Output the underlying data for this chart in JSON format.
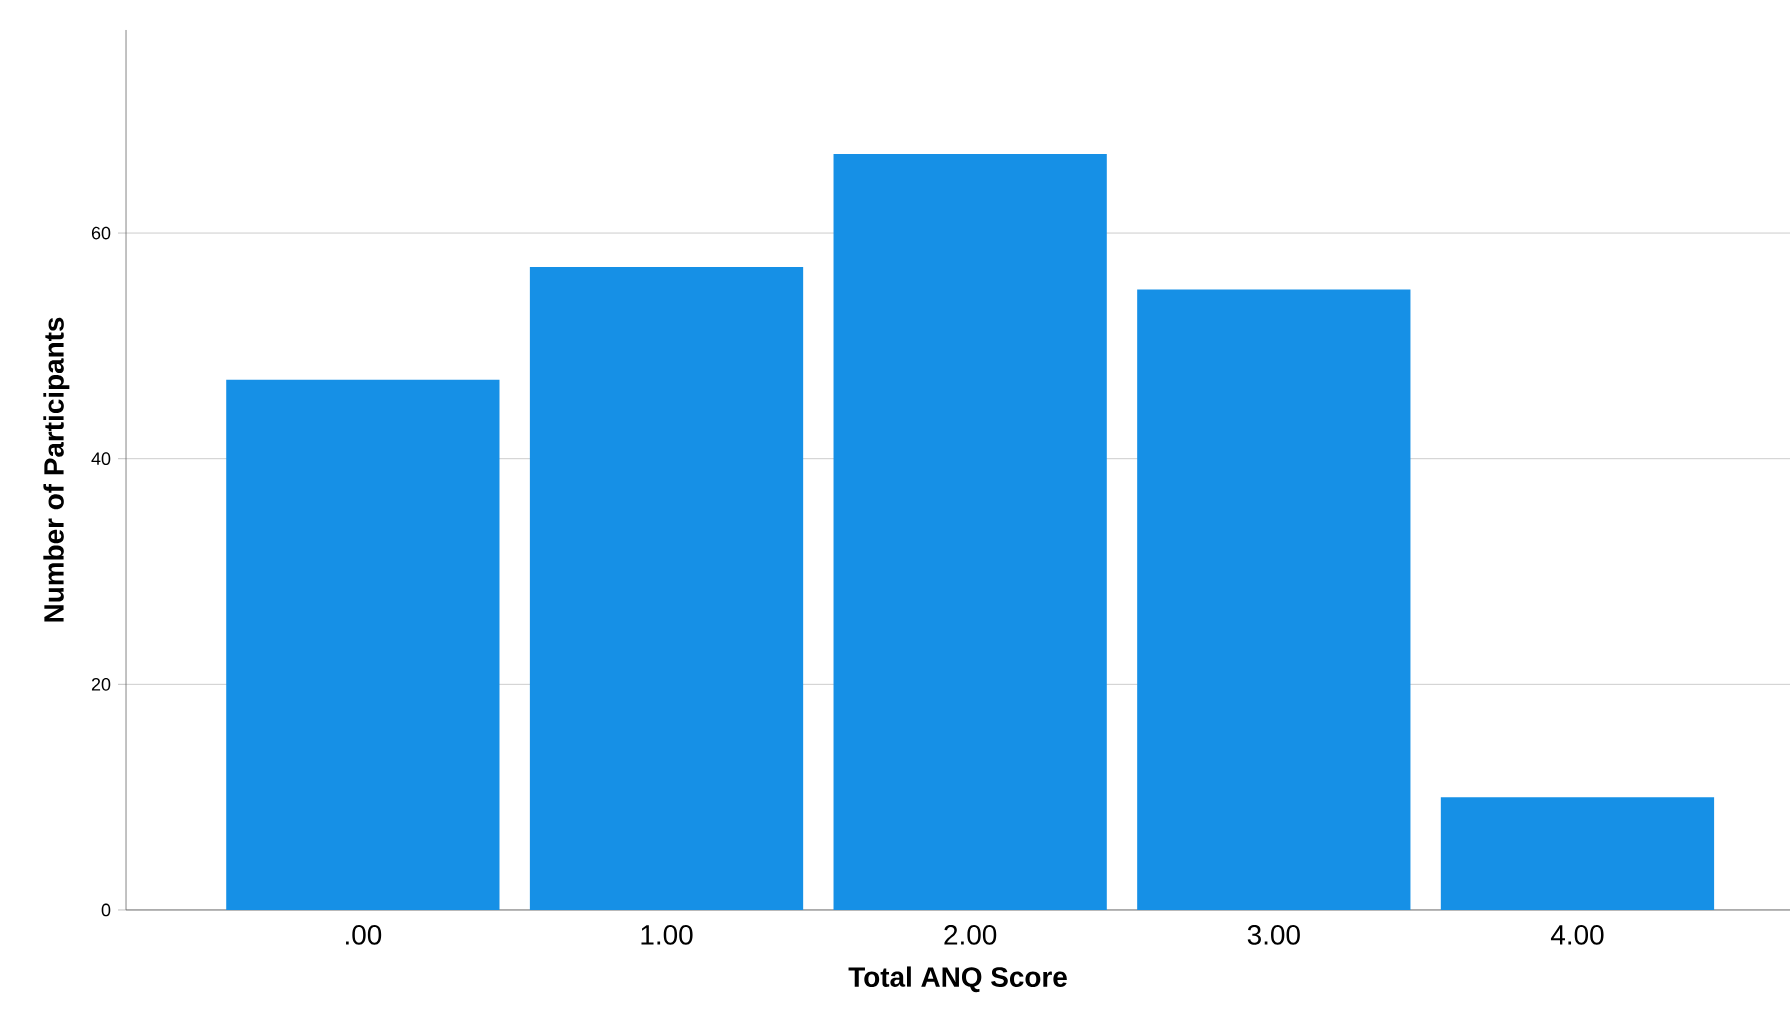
{
  "chart_data": {
    "type": "bar",
    "xlabel": "Total ANQ Score",
    "ylabel": "Number of Participants",
    "categories": [
      ".00",
      "1.00",
      "2.00",
      "3.00",
      "4.00"
    ],
    "values": [
      47,
      57,
      67,
      55,
      10
    ],
    "color": "#1690e6",
    "ylim": [
      0,
      78
    ],
    "yticks": [
      0,
      20,
      40,
      60
    ],
    "grid": "y"
  }
}
